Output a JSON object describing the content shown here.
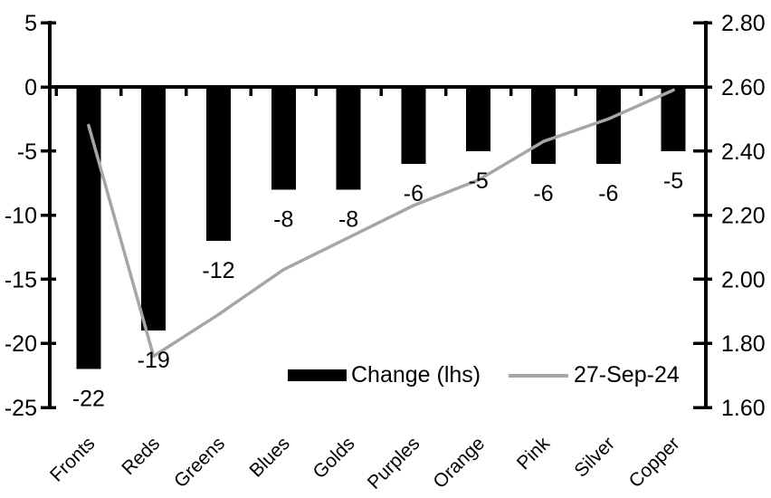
{
  "chart_data": {
    "type": "bar",
    "subtype": "bar-line-combo-dual-axis",
    "title": "",
    "categories": [
      "Fronts",
      "Reds",
      "Greens",
      "Blues",
      "Golds",
      "Purples",
      "Orange",
      "Pink",
      "Silver",
      "Copper"
    ],
    "series": [
      {
        "name": "Change (lhs)",
        "type": "bar",
        "axis": "left",
        "color": "#000000",
        "values": [
          -22,
          -19,
          -12,
          -8,
          -8,
          -6,
          -5,
          -6,
          -6,
          -5
        ],
        "data_labels": [
          "-22",
          "-19",
          "-12",
          "-8",
          "-8",
          "-6",
          "-5",
          "-6",
          "-6",
          "-5"
        ]
      },
      {
        "name": "27-Sep-24",
        "type": "line",
        "axis": "right",
        "color": "#a6a6a6",
        "values": [
          2.48,
          1.76,
          1.89,
          2.03,
          2.13,
          2.23,
          2.31,
          2.43,
          2.5,
          2.59
        ]
      }
    ],
    "left_axis": {
      "min": -25,
      "max": 5,
      "tick_step": 5,
      "tick_labels": [
        "5",
        "0",
        "-5",
        "-10",
        "-15",
        "-20",
        "-25"
      ],
      "tick_values": [
        5,
        0,
        -5,
        -10,
        -15,
        -20,
        -25
      ]
    },
    "right_axis": {
      "min": 1.6,
      "max": 2.8,
      "tick_step": 0.2,
      "tick_labels": [
        "2.80",
        "2.60",
        "2.40",
        "2.20",
        "2.00",
        "1.80",
        "1.60"
      ],
      "tick_values": [
        2.8,
        2.6,
        2.4,
        2.2,
        2.0,
        1.8,
        1.6
      ]
    },
    "legend": {
      "position": "bottom-inside",
      "items": [
        {
          "label": "Change (lhs)",
          "marker": "bar",
          "color": "#000000"
        },
        {
          "label": "27-Sep-24",
          "marker": "line",
          "color": "#a6a6a6"
        }
      ]
    },
    "grid": false,
    "background": "#ffffff",
    "colors": {
      "bar": "#000000",
      "line": "#a6a6a6",
      "axis": "#000000",
      "text": "#000000"
    }
  }
}
